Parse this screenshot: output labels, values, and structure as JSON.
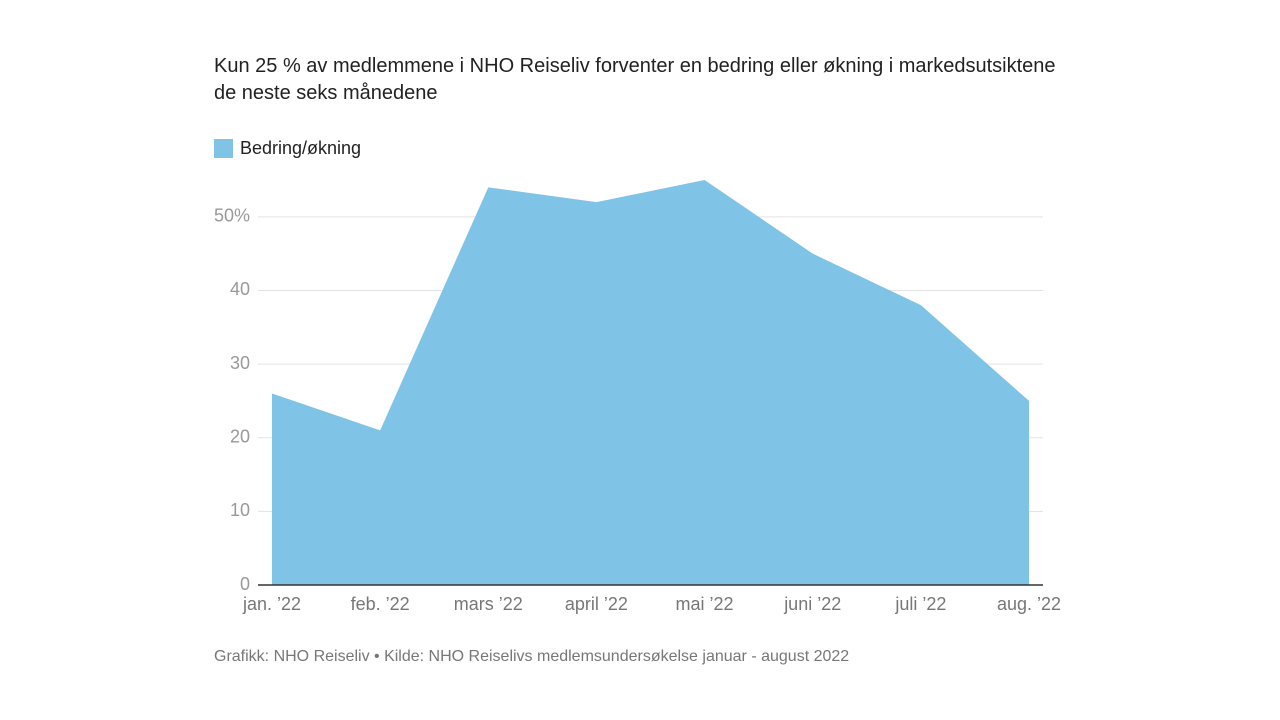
{
  "chart_data": {
    "type": "area",
    "title": "Kun 25 % av medlemmene i NHO Reiseliv forventer en bedring eller økning i markedsutsiktene de neste seks månedene",
    "categories": [
      "jan. ’22",
      "feb. ’22",
      "mars ’22",
      "april ’22",
      "mai ’22",
      "juni ’22",
      "juli ’22",
      "aug. ’22"
    ],
    "series": [
      {
        "name": "Bedring/økning",
        "color": "#7fc3e6",
        "values": [
          26,
          21,
          54,
          52,
          55,
          45,
          38,
          25
        ]
      }
    ],
    "ylim": [
      0,
      55
    ],
    "yticks": [
      0,
      10,
      20,
      30,
      40,
      {
        "value": 50,
        "label": "50%"
      }
    ],
    "grid": true,
    "source": "Grafikk: NHO Reiseliv • Kilde: NHO Reiselivs medlemsundersøkelse januar - august 2022"
  }
}
